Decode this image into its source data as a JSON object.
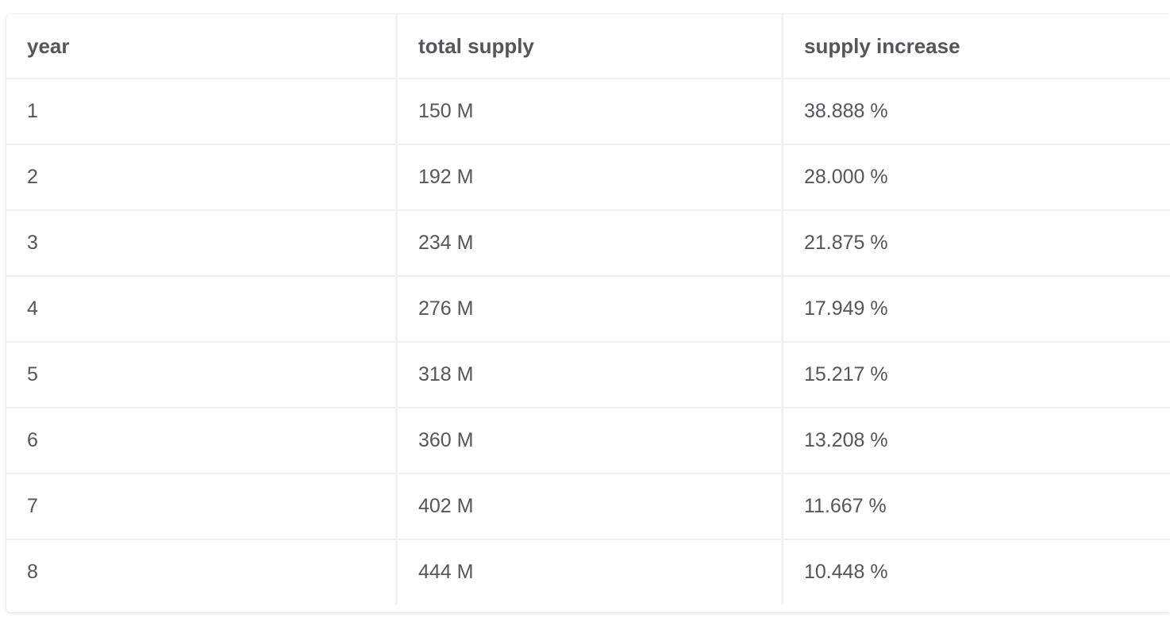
{
  "table": {
    "headers": [
      "year",
      "total supply",
      "supply increase"
    ],
    "rows": [
      [
        "1",
        "150 M",
        "38.888 %"
      ],
      [
        "2",
        "192 M",
        "28.000 %"
      ],
      [
        "3",
        "234 M",
        "21.875 %"
      ],
      [
        "4",
        "276 M",
        "17.949 %"
      ],
      [
        "5",
        "318 M",
        "15.217 %"
      ],
      [
        "6",
        "360 M",
        "13.208 %"
      ],
      [
        "7",
        "402 M",
        "11.667 %"
      ],
      [
        "8",
        "444 M",
        "10.448 %"
      ]
    ]
  }
}
